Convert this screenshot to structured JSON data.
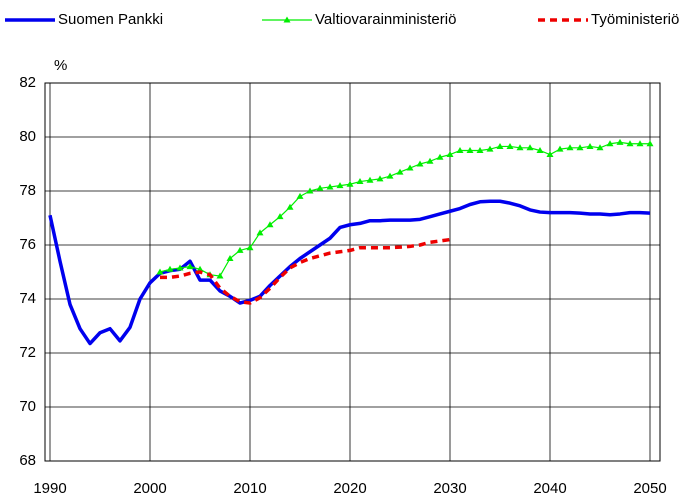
{
  "chart_data": {
    "type": "line",
    "y_label": "%",
    "x": [
      1990,
      1991,
      1992,
      1993,
      1994,
      1995,
      1996,
      1997,
      1998,
      1999,
      2000,
      2001,
      2002,
      2003,
      2004,
      2005,
      2006,
      2007,
      2008,
      2009,
      2010,
      2011,
      2012,
      2013,
      2014,
      2015,
      2016,
      2017,
      2018,
      2019,
      2020,
      2021,
      2022,
      2023,
      2024,
      2025,
      2026,
      2027,
      2028,
      2029,
      2030,
      2031,
      2032,
      2033,
      2034,
      2035,
      2036,
      2037,
      2038,
      2039,
      2040,
      2041,
      2042,
      2043,
      2044,
      2045,
      2046,
      2047,
      2048,
      2049,
      2050
    ],
    "series": [
      {
        "name": "Suomen Pankki",
        "color": "#0000ee",
        "width": 3.5,
        "values": [
          77.1,
          75.4,
          73.8,
          72.9,
          72.35,
          72.75,
          72.9,
          72.45,
          72.95,
          74.0,
          74.6,
          74.95,
          75.05,
          75.1,
          75.4,
          74.7,
          74.7,
          74.3,
          74.1,
          73.85,
          73.95,
          74.1,
          74.5,
          74.85,
          75.2,
          75.5,
          75.75,
          76.0,
          76.25,
          76.65,
          76.75,
          76.8,
          76.9,
          76.9,
          76.92,
          76.92,
          76.92,
          76.95,
          77.05,
          77.15,
          77.25,
          77.35,
          77.5,
          77.6,
          77.62,
          77.62,
          77.55,
          77.45,
          77.3,
          77.22,
          77.2,
          77.2,
          77.2,
          77.18,
          77.15,
          77.15,
          77.12,
          77.15,
          77.2,
          77.2,
          77.18
        ]
      },
      {
        "name": "Valtiovarainministeriö",
        "color": "#00ee00",
        "width": 1.2,
        "marker": "triangle",
        "values": [
          null,
          null,
          null,
          null,
          null,
          null,
          null,
          null,
          null,
          null,
          null,
          75.0,
          75.1,
          75.15,
          75.2,
          75.1,
          74.9,
          74.85,
          75.5,
          75.8,
          75.9,
          76.45,
          76.75,
          77.05,
          77.4,
          77.8,
          78.0,
          78.1,
          78.15,
          78.2,
          78.25,
          78.35,
          78.4,
          78.45,
          78.55,
          78.7,
          78.85,
          79.0,
          79.1,
          79.25,
          79.35,
          79.5,
          79.5,
          79.5,
          79.55,
          79.65,
          79.65,
          79.6,
          79.6,
          79.5,
          79.35,
          79.55,
          79.6,
          79.6,
          79.65,
          79.6,
          79.75,
          79.8,
          79.75,
          79.75,
          79.75
        ]
      },
      {
        "name": "Työministeriö",
        "color": "#ee0000",
        "width": 3.5,
        "dash": true,
        "values": [
          null,
          null,
          null,
          null,
          null,
          null,
          null,
          null,
          null,
          null,
          null,
          74.8,
          74.8,
          74.85,
          74.95,
          75.0,
          74.9,
          74.4,
          74.1,
          73.9,
          73.85,
          74.05,
          74.4,
          74.8,
          75.15,
          75.35,
          75.5,
          75.6,
          75.7,
          75.75,
          75.8,
          75.9,
          75.9,
          75.9,
          75.9,
          75.92,
          75.95,
          76.0,
          76.1,
          76.15,
          76.2,
          null,
          null,
          null,
          null,
          null,
          null,
          null,
          null,
          null,
          null,
          null,
          null,
          null,
          null,
          null,
          null,
          null,
          null,
          null,
          null
        ]
      }
    ],
    "xlim": [
      1989.5,
      2051
    ],
    "xticks": [
      1990,
      2000,
      2010,
      2020,
      2030,
      2040,
      2050
    ],
    "ylim": [
      68,
      82
    ],
    "yticks": [
      68,
      70,
      72,
      74,
      76,
      78,
      80,
      82
    ],
    "grid": true
  }
}
